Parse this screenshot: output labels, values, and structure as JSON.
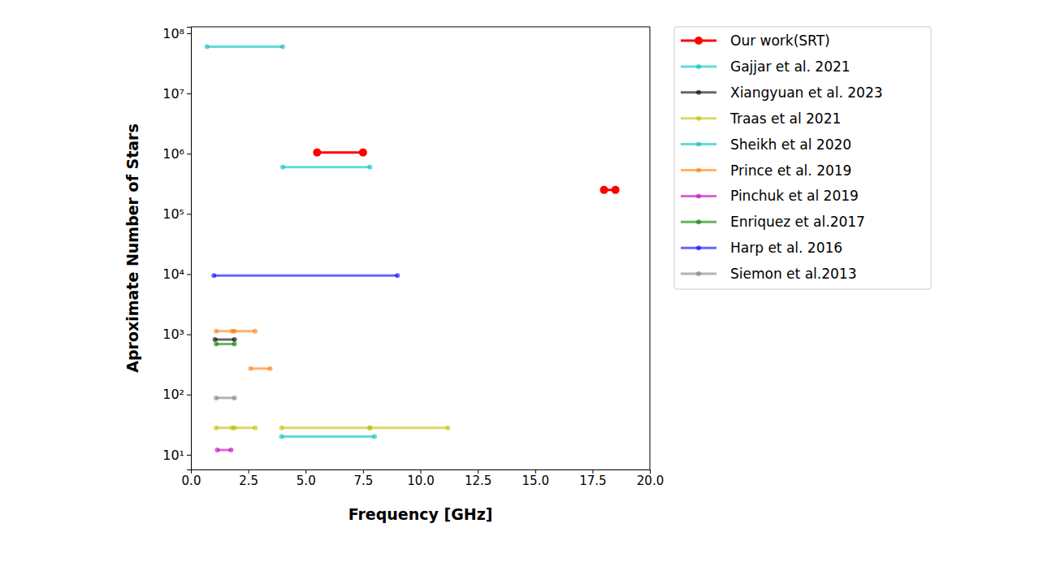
{
  "chart_data": {
    "type": "range",
    "x_label": "Frequency [GHz]",
    "y_label": "Aproximate Number of Stars",
    "log": "y",
    "legend": "right",
    "grid": false,
    "xlim": [
      0,
      20
    ],
    "xticks": [
      {
        "value": 0,
        "label": "0.0"
      },
      2.5,
      {
        "value": 5,
        "label": "5.0"
      },
      7.5,
      {
        "value": 10,
        "label": "10.0"
      },
      12.5,
      {
        "value": 15,
        "label": "15.0"
      },
      17.5,
      {
        "value": 20,
        "label": "20.0"
      }
    ],
    "ylim": [
      5.7,
      128000000
    ],
    "yticks": [
      {
        "value": 10,
        "label": "10¹"
      },
      {
        "value": 100,
        "label": "10²"
      },
      {
        "value": 1000,
        "label": "10³"
      },
      {
        "value": 10000,
        "label": "10⁴"
      },
      {
        "value": 100000,
        "label": "10⁵"
      },
      {
        "value": 1000000,
        "label": "10⁶"
      },
      {
        "value": 10000000,
        "label": "10⁷"
      },
      {
        "value": 100000000,
        "label": "10⁸"
      }
    ],
    "series": [
      {
        "name": "Our work(SRT)",
        "color": "#ff0000",
        "marker": "circle",
        "segments": [
          {
            "x": [
              5.5,
              7.5
            ],
            "y": 1050000
          },
          {
            "x": [
              18.0,
              18.5
            ],
            "y": 250000
          }
        ]
      },
      {
        "name": "Gajjar et al. 2021",
        "color": "#00bfbf",
        "marker": "circle",
        "segments": [
          {
            "x": [
              0.7,
              4.0
            ],
            "y": 60000000
          },
          {
            "x": [
              4.0,
              7.8
            ],
            "y": 600000
          }
        ]
      },
      {
        "name": "Xiangyuan et al. 2023",
        "color": "#000000",
        "marker": "circle",
        "segments": [
          {
            "x": [
              1.05,
              1.9
            ],
            "y": 820
          }
        ]
      },
      {
        "name": "Traas et al 2021",
        "color": "#bfbf00",
        "marker": "circle",
        "segments": [
          {
            "x": [
              1.1,
              1.9
            ],
            "y": 28
          },
          {
            "x": [
              1.8,
              2.8
            ],
            "y": 28
          },
          {
            "x": [
              3.95,
              7.8
            ],
            "y": 28
          },
          {
            "x": [
              7.8,
              11.2
            ],
            "y": 28
          }
        ]
      },
      {
        "name": "Sheikh et al 2020",
        "color": "#00bfbf",
        "marker": "circle",
        "segments": [
          {
            "x": [
              3.95,
              8.0
            ],
            "y": 20
          }
        ]
      },
      {
        "name": "Prince et al. 2019",
        "color": "#ff7f0e",
        "marker": "circle",
        "segments": [
          {
            "x": [
              1.1,
              1.9
            ],
            "y": 1130
          },
          {
            "x": [
              1.8,
              2.8
            ],
            "y": 1130
          },
          {
            "x": [
              2.6,
              3.45
            ],
            "y": 270
          }
        ]
      },
      {
        "name": "Pinchuk et al 2019",
        "color": "#bf00bf",
        "marker": "circle",
        "segments": [
          {
            "x": [
              1.15,
              1.75
            ],
            "y": 12
          }
        ]
      },
      {
        "name": "Enriquez et al.2017",
        "color": "#008000",
        "marker": "circle",
        "segments": [
          {
            "x": [
              1.1,
              1.9
            ],
            "y": 690
          }
        ]
      },
      {
        "name": "Harp et al. 2016",
        "color": "#0000ff",
        "marker": "circle",
        "segments": [
          {
            "x": [
              1.0,
              9.0
            ],
            "y": 9500
          }
        ]
      },
      {
        "name": "Siemon et al.2013",
        "color": "#808080",
        "marker": "circle",
        "segments": [
          {
            "x": [
              1.1,
              1.9
            ],
            "y": 88
          }
        ]
      }
    ]
  }
}
